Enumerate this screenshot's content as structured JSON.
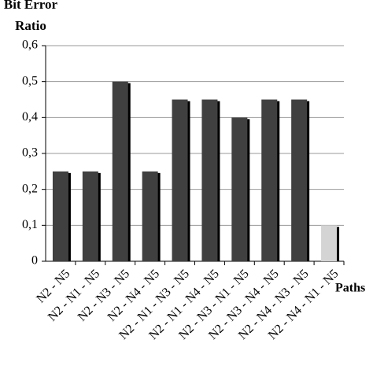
{
  "chart_data": {
    "type": "bar",
    "y_label": "Bit Error Ratio",
    "x_label": "Paths",
    "categories": [
      "N2 - N5",
      "N2 - N1 - N5",
      "N2 - N3 - N5",
      "N2 - N4 - N5",
      "N2 - N1 - N3 - N5",
      "N2 - N1 - N4 - N5",
      "N2 - N3 - N1 - N5",
      "N2 - N3 - N4 - N5",
      "N2 - N4 - N3 - N5",
      "N2 - N4 - N1 - N5"
    ],
    "values": [
      0.25,
      0.25,
      0.5,
      0.25,
      0.45,
      0.45,
      0.4,
      0.45,
      0.45,
      0.1
    ],
    "colors": [
      "#404040",
      "#404040",
      "#404040",
      "#404040",
      "#404040",
      "#404040",
      "#404040",
      "#404040",
      "#404040",
      "#d4d4d4"
    ],
    "ylim": [
      0,
      0.6
    ],
    "yticks": [
      0,
      {
        "value": 0.1,
        "label": "0,1"
      },
      {
        "value": 0.2,
        "label": "0,2"
      },
      {
        "value": 0.3,
        "label": "0,3"
      },
      {
        "value": 0.4,
        "label": "0,4"
      },
      {
        "value": 0.5,
        "label": "0,5"
      },
      {
        "value": 0.6,
        "label": "0,6"
      }
    ],
    "grid": true
  }
}
